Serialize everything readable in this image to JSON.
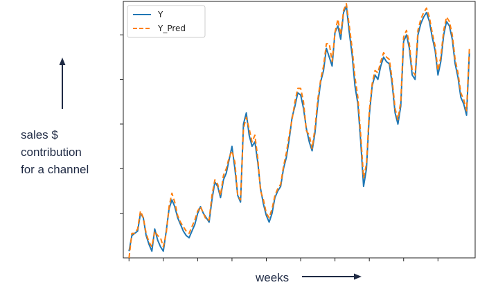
{
  "chart_data": {
    "type": "line",
    "title": "",
    "xlabel": "weeks",
    "ylabel_lines": [
      "sales $",
      "contribution",
      "for a channel"
    ],
    "tick_labels_shown": false,
    "x": [
      0,
      1,
      2,
      3,
      4,
      5,
      6,
      7,
      8,
      9,
      10,
      11,
      12,
      13,
      14,
      15,
      16,
      17,
      18,
      19,
      20,
      21,
      22,
      23,
      24,
      25,
      26,
      27,
      28,
      29,
      30,
      31,
      32,
      33,
      34,
      35,
      36,
      37,
      38,
      39,
      40,
      41,
      42,
      43,
      44,
      45,
      46,
      47,
      48,
      49,
      50,
      51,
      52,
      53,
      54,
      55,
      56,
      57,
      58,
      59,
      60,
      61,
      62,
      63,
      64,
      65,
      66,
      67,
      68,
      69,
      70,
      71,
      72,
      73,
      74,
      75,
      76,
      77,
      78,
      79,
      80,
      81,
      82,
      83,
      84,
      85,
      86,
      87,
      88,
      89,
      90,
      91,
      92,
      93,
      94,
      95,
      96,
      97,
      98,
      99,
      100,
      101,
      102,
      103,
      104,
      105,
      106,
      107,
      108,
      109,
      110,
      111,
      112,
      113,
      114,
      115,
      116,
      117,
      118,
      119
    ],
    "xlim": [
      -2,
      121
    ],
    "ylim": [
      0,
      115
    ],
    "series": [
      {
        "name": "Y",
        "color": "#1f77b4",
        "dash": "solid",
        "values": [
          3,
          10,
          11,
          12,
          20,
          18,
          10,
          6,
          3,
          13,
          8,
          5,
          3,
          12,
          22,
          26,
          23,
          18,
          15,
          12,
          10,
          9,
          12,
          15,
          20,
          23,
          20,
          18,
          16,
          26,
          34,
          32,
          27,
          35,
          38,
          44,
          50,
          40,
          28,
          25,
          60,
          65,
          55,
          50,
          52,
          43,
          31,
          24,
          19,
          16,
          20,
          27,
          30,
          32,
          40,
          45,
          53,
          63,
          68,
          74,
          73,
          67,
          58,
          52,
          48,
          56,
          69,
          79,
          84,
          94,
          90,
          86,
          101,
          104,
          98,
          110,
          113,
          101,
          91,
          77,
          69,
          52,
          32,
          40,
          64,
          77,
          82,
          80,
          86,
          90,
          88,
          87,
          78,
          65,
          60,
          68,
          97,
          100,
          94,
          82,
          80,
          100,
          105,
          108,
          110,
          106,
          99,
          93,
          82,
          88,
          100,
          106,
          104,
          98,
          87,
          81,
          72,
          69,
          64,
          92
        ]
      },
      {
        "name": "Y_Pred",
        "color": "#ff7f0e",
        "dash": "dashed",
        "values": [
          0,
          11,
          11,
          13,
          21,
          18,
          11,
          7,
          5,
          12,
          10,
          9,
          5,
          11,
          23,
          29,
          25,
          19,
          16,
          14,
          12,
          11,
          14,
          17,
          21,
          23,
          20,
          17,
          17,
          28,
          35,
          33,
          28,
          37,
          40,
          45,
          48,
          43,
          28,
          26,
          58,
          63,
          58,
          52,
          55,
          45,
          30,
          26,
          20,
          18,
          22,
          28,
          31,
          33,
          41,
          47,
          55,
          62,
          70,
          76,
          76,
          70,
          57,
          55,
          49,
          58,
          71,
          80,
          86,
          96,
          96,
          88,
          101,
          107,
          100,
          111,
          114,
          104,
          94,
          81,
          72,
          55,
          36,
          42,
          66,
          78,
          84,
          83,
          88,
          92,
          90,
          89,
          80,
          67,
          62,
          70,
          99,
          102,
          96,
          84,
          82,
          102,
          107,
          110,
          112,
          108,
          101,
          95,
          84,
          90,
          102,
          108,
          106,
          100,
          89,
          83,
          74,
          71,
          66,
          94
        ]
      }
    ]
  }
}
